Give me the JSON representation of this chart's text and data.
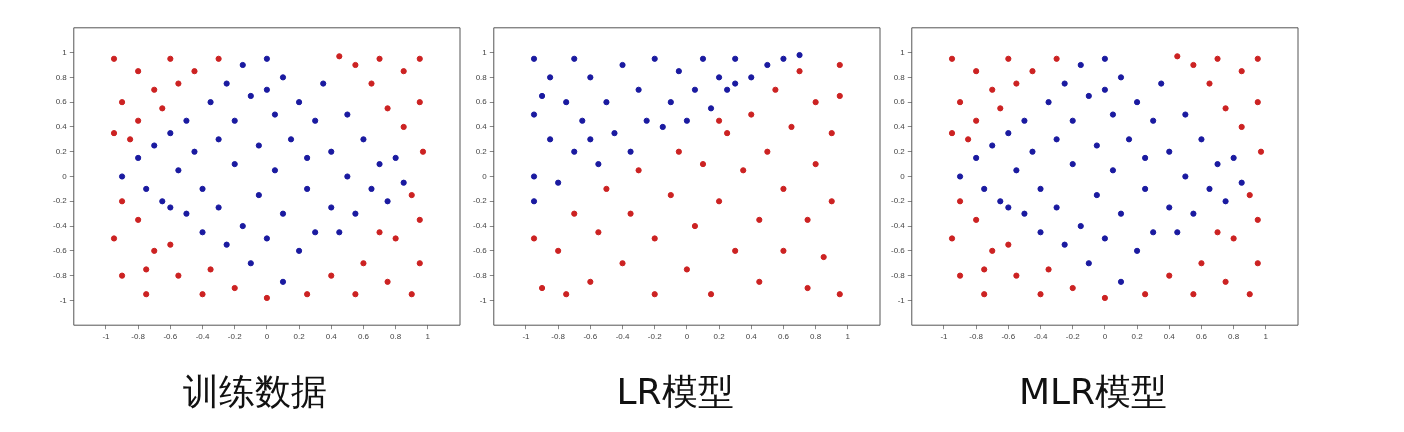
{
  "chart_data": [
    {
      "type": "scatter",
      "title": "训练数据",
      "marker": "circle",
      "xlim": [
        -1.2,
        1.2
      ],
      "ylim": [
        -1.2,
        1.2
      ],
      "xticks": [
        -1,
        -0.8,
        -0.6,
        -0.4,
        -0.2,
        0,
        0.2,
        0.4,
        0.6,
        0.8,
        1
      ],
      "yticks": [
        -1,
        -0.8,
        -0.6,
        -0.4,
        -0.2,
        0,
        0.2,
        0.4,
        0.6,
        0.8,
        1
      ],
      "series": [
        {
          "color": "#cc2222",
          "x": [
            -0.95,
            -0.8,
            -0.6,
            -0.45,
            -0.3,
            -0.9,
            -0.7,
            -0.55,
            -0.95,
            -0.8,
            -0.9,
            -0.95,
            -0.8,
            -0.7,
            -0.9,
            -0.75,
            -0.55,
            -0.6,
            -0.4,
            -0.35,
            -0.2,
            0.0,
            0.25,
            0.4,
            0.55,
            0.6,
            0.75,
            0.9,
            0.95,
            0.8,
            0.95,
            0.9,
            0.97,
            0.85,
            0.95,
            0.75,
            0.65,
            0.85,
            0.95,
            0.55,
            0.45,
            0.7,
            -0.65,
            -0.85,
            -0.75,
            0.7
          ],
          "values": [
            0.95,
            0.85,
            0.95,
            0.85,
            0.95,
            0.6,
            0.7,
            0.75,
            0.35,
            0.45,
            -0.2,
            -0.5,
            -0.35,
            -0.6,
            -0.8,
            -0.95,
            -0.8,
            -0.55,
            -0.95,
            -0.75,
            -0.9,
            -0.98,
            -0.95,
            -0.8,
            -0.95,
            -0.7,
            -0.85,
            -0.95,
            -0.7,
            -0.5,
            -0.35,
            -0.15,
            0.2,
            0.4,
            0.6,
            0.55,
            0.75,
            0.85,
            0.95,
            0.9,
            0.97,
            0.95,
            0.55,
            0.3,
            -0.75,
            -0.45
          ]
        },
        {
          "color": "#1a1aa0",
          "x": [
            -0.9,
            -0.8,
            -0.75,
            -0.7,
            -0.65,
            -0.6,
            -0.55,
            -0.5,
            -0.5,
            -0.45,
            -0.4,
            -0.4,
            -0.35,
            -0.3,
            -0.3,
            -0.25,
            -0.25,
            -0.2,
            -0.2,
            -0.15,
            -0.15,
            -0.1,
            -0.1,
            -0.05,
            -0.05,
            0,
            0,
            0.05,
            0.05,
            0.1,
            0.1,
            0.1,
            0.15,
            0.2,
            0.2,
            0.25,
            0.25,
            0.3,
            0.3,
            0.35,
            0.4,
            0.4,
            0.45,
            0.5,
            0.5,
            0.55,
            0.6,
            0.65,
            0.7,
            0.75,
            0.8,
            0.85,
            -0.6,
            0.0
          ],
          "values": [
            0.0,
            0.15,
            -0.1,
            0.25,
            -0.2,
            0.35,
            0.05,
            -0.3,
            0.45,
            0.2,
            -0.45,
            -0.1,
            0.6,
            0.3,
            -0.25,
            0.75,
            -0.55,
            0.1,
            0.45,
            0.9,
            -0.4,
            -0.7,
            0.65,
            0.25,
            -0.15,
            0.95,
            -0.5,
            0.5,
            0.05,
            -0.85,
            0.8,
            -0.3,
            0.3,
            -0.6,
            0.6,
            -0.1,
            0.15,
            -0.45,
            0.45,
            0.75,
            -0.25,
            0.2,
            -0.45,
            0.5,
            0,
            -0.3,
            0.3,
            -0.1,
            0.1,
            -0.2,
            0.15,
            -0.05,
            -0.25,
            0.7
          ]
        }
      ]
    },
    {
      "type": "scatter",
      "title": "LR模型",
      "marker": "circle",
      "xlim": [
        -1.2,
        1.2
      ],
      "ylim": [
        -1.2,
        1.2
      ],
      "xticks": [
        -1,
        -0.8,
        -0.6,
        -0.4,
        -0.2,
        0,
        0.2,
        0.4,
        0.6,
        0.8,
        1
      ],
      "yticks": [
        -1,
        -0.8,
        -0.6,
        -0.4,
        -0.2,
        0,
        0.2,
        0.4,
        0.6,
        0.8,
        1
      ],
      "series": [
        {
          "color": "#1a1aa0",
          "x": [
            -0.95,
            -0.95,
            -0.95,
            -0.95,
            -0.85,
            -0.85,
            -0.8,
            -0.75,
            -0.7,
            -0.7,
            -0.65,
            -0.6,
            -0.55,
            -0.5,
            -0.45,
            -0.4,
            -0.35,
            -0.3,
            -0.25,
            -0.2,
            -0.15,
            -0.1,
            -0.05,
            0,
            0.05,
            0.1,
            0.15,
            0.2,
            0.3,
            0.3,
            0.4,
            0.5,
            0.6,
            0.7,
            -0.6,
            -0.9,
            0.25
          ],
          "values": [
            0.95,
            0.5,
            0.0,
            -0.2,
            0.8,
            0.3,
            -0.05,
            0.6,
            0.95,
            0.2,
            0.45,
            0.8,
            0.1,
            0.6,
            0.35,
            0.9,
            0.2,
            0.7,
            0.45,
            0.95,
            0.4,
            0.6,
            0.85,
            0.45,
            0.7,
            0.95,
            0.55,
            0.8,
            0.75,
            0.95,
            0.8,
            0.9,
            0.95,
            0.98,
            0.3,
            0.65,
            0.7
          ]
        },
        {
          "color": "#cc2222",
          "x": [
            -0.95,
            -0.9,
            -0.8,
            -0.7,
            -0.6,
            -0.55,
            -0.5,
            -0.4,
            -0.35,
            -0.3,
            -0.2,
            -0.2,
            -0.1,
            -0.05,
            0,
            0.05,
            0.1,
            0.15,
            0.2,
            0.25,
            0.3,
            0.35,
            0.4,
            0.45,
            0.45,
            0.5,
            0.55,
            0.6,
            0.6,
            0.65,
            0.7,
            0.75,
            0.75,
            0.8,
            0.8,
            0.85,
            0.9,
            0.9,
            0.95,
            0.95,
            0.95,
            -0.75,
            0.2
          ],
          "values": [
            -0.5,
            -0.9,
            -0.6,
            -0.3,
            -0.85,
            -0.45,
            -0.1,
            -0.7,
            -0.3,
            0.05,
            -0.95,
            -0.5,
            -0.15,
            0.2,
            -0.75,
            -0.4,
            0.1,
            -0.95,
            -0.2,
            0.35,
            -0.6,
            0.05,
            0.5,
            -0.85,
            -0.35,
            0.2,
            0.7,
            -0.6,
            -0.1,
            0.4,
            0.85,
            -0.9,
            -0.35,
            0.1,
            0.6,
            -0.65,
            -0.2,
            0.35,
            0.9,
            -0.95,
            0.65,
            -0.95,
            0.45
          ]
        }
      ]
    },
    {
      "type": "scatter",
      "title": "MLR模型",
      "marker": "circle",
      "xlim": [
        -1.2,
        1.2
      ],
      "ylim": [
        -1.2,
        1.2
      ],
      "xticks": [
        -1,
        -0.8,
        -0.6,
        -0.4,
        -0.2,
        0,
        0.2,
        0.4,
        0.6,
        0.8,
        1
      ],
      "yticks": [
        -1,
        -0.8,
        -0.6,
        -0.4,
        -0.2,
        0,
        0.2,
        0.4,
        0.6,
        0.8,
        1
      ],
      "series": [
        {
          "color": "#cc2222",
          "x": [
            -0.95,
            -0.8,
            -0.6,
            -0.45,
            -0.3,
            -0.9,
            -0.7,
            -0.55,
            -0.95,
            -0.8,
            -0.9,
            -0.95,
            -0.8,
            -0.7,
            -0.9,
            -0.75,
            -0.55,
            -0.6,
            -0.4,
            -0.35,
            -0.2,
            0.0,
            0.25,
            0.4,
            0.55,
            0.6,
            0.75,
            0.9,
            0.95,
            0.8,
            0.95,
            0.9,
            0.97,
            0.85,
            0.95,
            0.75,
            0.65,
            0.85,
            0.95,
            0.55,
            0.45,
            0.7,
            -0.65,
            -0.85,
            -0.75,
            0.7
          ],
          "values": [
            0.95,
            0.85,
            0.95,
            0.85,
            0.95,
            0.6,
            0.7,
            0.75,
            0.35,
            0.45,
            -0.2,
            -0.5,
            -0.35,
            -0.6,
            -0.8,
            -0.95,
            -0.8,
            -0.55,
            -0.95,
            -0.75,
            -0.9,
            -0.98,
            -0.95,
            -0.8,
            -0.95,
            -0.7,
            -0.85,
            -0.95,
            -0.7,
            -0.5,
            -0.35,
            -0.15,
            0.2,
            0.4,
            0.6,
            0.55,
            0.75,
            0.85,
            0.95,
            0.9,
            0.97,
            0.95,
            0.55,
            0.3,
            -0.75,
            -0.45
          ]
        },
        {
          "color": "#1a1aa0",
          "x": [
            -0.9,
            -0.8,
            -0.75,
            -0.7,
            -0.65,
            -0.6,
            -0.55,
            -0.5,
            -0.5,
            -0.45,
            -0.4,
            -0.4,
            -0.35,
            -0.3,
            -0.3,
            -0.25,
            -0.25,
            -0.2,
            -0.2,
            -0.15,
            -0.15,
            -0.1,
            -0.1,
            -0.05,
            -0.05,
            0,
            0,
            0.05,
            0.05,
            0.1,
            0.1,
            0.1,
            0.15,
            0.2,
            0.2,
            0.25,
            0.25,
            0.3,
            0.3,
            0.35,
            0.4,
            0.4,
            0.45,
            0.5,
            0.5,
            0.55,
            0.6,
            0.65,
            0.7,
            0.75,
            0.8,
            0.85,
            -0.6,
            0.0
          ],
          "values": [
            0.0,
            0.15,
            -0.1,
            0.25,
            -0.2,
            0.35,
            0.05,
            -0.3,
            0.45,
            0.2,
            -0.45,
            -0.1,
            0.6,
            0.3,
            -0.25,
            0.75,
            -0.55,
            0.1,
            0.45,
            0.9,
            -0.4,
            -0.7,
            0.65,
            0.25,
            -0.15,
            0.95,
            -0.5,
            0.5,
            0.05,
            -0.85,
            0.8,
            -0.3,
            0.3,
            -0.6,
            0.6,
            -0.1,
            0.15,
            -0.45,
            0.45,
            0.75,
            -0.25,
            0.2,
            -0.45,
            0.5,
            0,
            -0.3,
            0.3,
            -0.1,
            0.1,
            -0.2,
            0.15,
            -0.05,
            -0.25,
            0.7
          ]
        }
      ]
    }
  ]
}
